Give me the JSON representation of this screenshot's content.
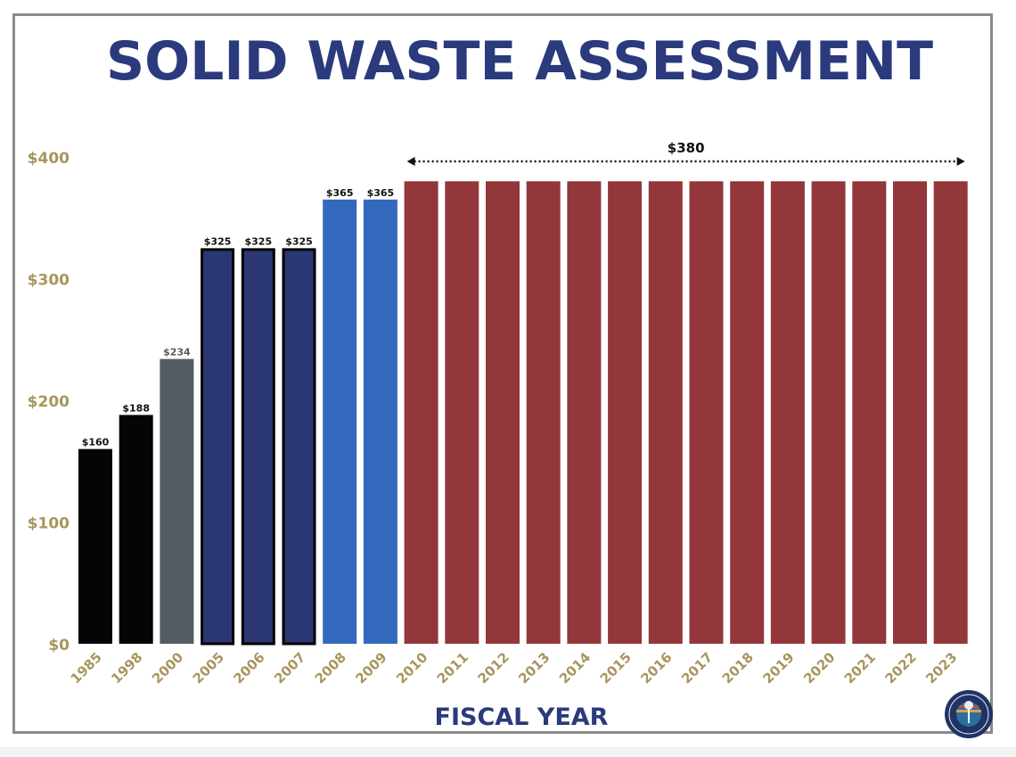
{
  "chart_data": {
    "type": "bar",
    "title": "SOLID WASTE ASSESSMENT",
    "xlabel": "FISCAL YEAR",
    "ylabel": "",
    "ylim": [
      0,
      400
    ],
    "yticks": [
      0,
      100,
      200,
      300,
      400
    ],
    "ytick_labels": [
      "$0",
      "$100",
      "$200",
      "$300",
      "$400"
    ],
    "grid": false,
    "categories": [
      "1985",
      "1998",
      "2000",
      "2005",
      "2006",
      "2007",
      "2008",
      "2009",
      "2010",
      "2011",
      "2012",
      "2013",
      "2014",
      "2015",
      "2016",
      "2017",
      "2018",
      "2019",
      "2020",
      "2021",
      "2022",
      "2023"
    ],
    "values": [
      160,
      188,
      234,
      325,
      325,
      325,
      365,
      365,
      380,
      380,
      380,
      380,
      380,
      380,
      380,
      380,
      380,
      380,
      380,
      380,
      380,
      380
    ],
    "data_labels": [
      "$160",
      "$188",
      "$234",
      "$325",
      "$325",
      "$325",
      "$365",
      "$365",
      "",
      "",
      "",
      "",
      "",
      "",
      "",
      "",
      "",
      "",
      "",
      "",
      "",
      ""
    ],
    "bar_colors": [
      "#050505",
      "#050505",
      "#555c61",
      "#2b3773",
      "#2b3773",
      "#2b3773",
      "#3369bd",
      "#3369bd",
      "#93373a",
      "#93373a",
      "#93373a",
      "#93373a",
      "#93373a",
      "#93373a",
      "#93373a",
      "#93373a",
      "#93373a",
      "#93373a",
      "#93373a",
      "#93373a",
      "#93373a",
      "#93373a"
    ],
    "annotation": {
      "label": "$380",
      "from": "2010",
      "to": "2023",
      "style": "dotted double arrow"
    }
  },
  "colors": {
    "title": "#2a3a7c",
    "axis_labels": "#a8955c",
    "frame": "#8a8a8a"
  },
  "logo": {
    "text": "CITY OF MIAMI FLORIDA",
    "icon": "city-seal-icon"
  }
}
